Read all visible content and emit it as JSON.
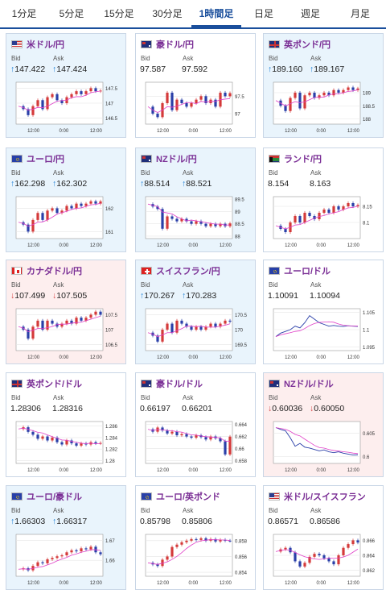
{
  "tabs": [
    {
      "label": "1分足",
      "active": false
    },
    {
      "label": "5分足",
      "active": false
    },
    {
      "label": "15分足",
      "active": false
    },
    {
      "label": "30分足",
      "active": false
    },
    {
      "label": "1時間足",
      "active": true
    },
    {
      "label": "日足",
      "active": false
    },
    {
      "label": "週足",
      "active": false
    },
    {
      "label": "月足",
      "active": false
    }
  ],
  "labels": {
    "bid": "Bid",
    "ask": "Ask"
  },
  "colors": {
    "up_bg": "#e9f4fc",
    "down_bg": "#fdeeee",
    "pair_text": "#7a2e95",
    "tab_active": "#1a4f9c",
    "candle_up": "#d43a3a",
    "candle_down": "#2a3fa8",
    "ma_line": "#e040c8"
  },
  "cards": [
    {
      "pair": "米ドル/円",
      "flag": "flag-us",
      "state": "up",
      "bid_dir": "up",
      "ask_dir": "up",
      "bid": "147.422",
      "ask": "147.424",
      "chart_data": {
        "type": "candlestick",
        "x_ticks": [
          "12:00",
          "0:00",
          "12:00"
        ],
        "y_ticks": [
          "147.5",
          "147",
          "146.5"
        ],
        "ylim": [
          146.3,
          147.7
        ],
        "trend": [
          146.9,
          146.8,
          146.6,
          146.9,
          147.1,
          146.8,
          147.2,
          147.3,
          147.1,
          147.0,
          147.2,
          147.3,
          147.4,
          147.3,
          147.4,
          147.5,
          147.4,
          147.42
        ]
      }
    },
    {
      "pair": "豪ドル/円",
      "flag": "flag-au",
      "state": "neutral",
      "bid_dir": "",
      "ask_dir": "",
      "bid": "97.587",
      "ask": "97.592",
      "chart_data": {
        "type": "candlestick",
        "x_ticks": [
          "12:00",
          "0:00",
          "12:00"
        ],
        "y_ticks": [
          "97.5",
          "97"
        ],
        "ylim": [
          96.7,
          97.9
        ],
        "trend": [
          97.2,
          97.0,
          96.9,
          97.3,
          97.6,
          97.1,
          97.4,
          97.3,
          97.2,
          97.3,
          97.4,
          97.5,
          97.3,
          97.4,
          97.2,
          97.6,
          97.5,
          97.587
        ]
      }
    },
    {
      "pair": "英ポンド/円",
      "flag": "flag-gb",
      "state": "up",
      "bid_dir": "up",
      "ask_dir": "up",
      "bid": "189.160",
      "ask": "189.167",
      "chart_data": {
        "type": "candlestick",
        "x_ticks": [
          "12:00",
          "0:00",
          "12:00"
        ],
        "y_ticks": [
          "189",
          "188.5",
          "188"
        ],
        "ylim": [
          187.8,
          189.4
        ],
        "trend": [
          188.7,
          188.5,
          188.3,
          188.8,
          189.0,
          188.4,
          188.9,
          189.0,
          188.8,
          188.9,
          189.0,
          188.9,
          189.1,
          189.0,
          189.1,
          189.2,
          189.1,
          189.16
        ]
      }
    },
    {
      "pair": "ユーロ/円",
      "flag": "flag-eu",
      "state": "up",
      "bid_dir": "up",
      "ask_dir": "up",
      "bid": "162.298",
      "ask": "162.302",
      "chart_data": {
        "type": "candlestick",
        "x_ticks": [
          "12:00",
          "0:00",
          "12:00"
        ],
        "y_ticks": [
          "162",
          "161"
        ],
        "ylim": [
          160.7,
          162.5
        ],
        "trend": [
          161.4,
          161.3,
          161.0,
          161.5,
          161.8,
          161.5,
          161.9,
          162.0,
          161.8,
          161.9,
          162.1,
          162.0,
          162.2,
          162.1,
          162.2,
          162.3,
          162.2,
          162.298
        ]
      }
    },
    {
      "pair": "NZドル/円",
      "flag": "flag-nz",
      "state": "up",
      "bid_dir": "up",
      "ask_dir": "up",
      "bid": "88.514",
      "ask": "88.521",
      "chart_data": {
        "type": "candlestick",
        "x_ticks": [
          "12:00",
          "0:00",
          "12:00"
        ],
        "y_ticks": [
          "89.5",
          "89",
          "88.5",
          "88"
        ],
        "ylim": [
          87.9,
          89.6
        ],
        "trend": [
          89.3,
          89.2,
          89.1,
          88.3,
          88.8,
          88.7,
          88.6,
          88.7,
          88.6,
          88.5,
          88.6,
          88.5,
          88.4,
          88.5,
          88.4,
          88.5,
          88.4,
          88.514
        ]
      }
    },
    {
      "pair": "ランド/円",
      "flag": "flag-za",
      "state": "neutral",
      "bid_dir": "",
      "ask_dir": "",
      "bid": "8.154",
      "ask": "8.163",
      "chart_data": {
        "type": "candlestick",
        "x_ticks": [
          "12:00",
          "0:00",
          "12:00"
        ],
        "y_ticks": [
          "8.15",
          "8.1"
        ],
        "ylim": [
          8.05,
          8.18
        ],
        "trend": [
          8.09,
          8.08,
          8.07,
          8.1,
          8.12,
          8.1,
          8.13,
          8.12,
          8.11,
          8.13,
          8.14,
          8.13,
          8.15,
          8.14,
          8.15,
          8.16,
          8.15,
          8.154
        ]
      }
    },
    {
      "pair": "カナダドル/円",
      "flag": "flag-ca",
      "state": "down",
      "bid_dir": "down",
      "ask_dir": "down",
      "bid": "107.499",
      "ask": "107.505",
      "chart_data": {
        "type": "candlestick",
        "x_ticks": [
          "12:00",
          "0:00",
          "12:00"
        ],
        "y_ticks": [
          "107.5",
          "107",
          "106.5"
        ],
        "ylim": [
          106.3,
          107.7
        ],
        "trend": [
          107.1,
          107.0,
          106.7,
          107.1,
          107.3,
          107.0,
          107.3,
          107.2,
          107.1,
          107.2,
          107.3,
          107.2,
          107.4,
          107.3,
          107.4,
          107.5,
          107.6,
          107.499
        ]
      }
    },
    {
      "pair": "スイスフラン/円",
      "flag": "flag-ch",
      "state": "up",
      "bid_dir": "up",
      "ask_dir": "up",
      "bid": "170.267",
      "ask": "170.283",
      "chart_data": {
        "type": "candlestick",
        "x_ticks": [
          "12:00",
          "0:00",
          "12:00"
        ],
        "y_ticks": [
          "170.5",
          "170",
          "169.5"
        ],
        "ylim": [
          169.3,
          170.7
        ],
        "trend": [
          169.9,
          169.8,
          169.6,
          170.0,
          170.2,
          169.9,
          170.3,
          170.2,
          170.1,
          170.0,
          170.1,
          170.0,
          170.1,
          170.2,
          170.1,
          170.2,
          170.3,
          170.267
        ]
      }
    },
    {
      "pair": "ユーロ/ドル",
      "flag": "flag-eu",
      "state": "neutral",
      "bid_dir": "",
      "ask_dir": "",
      "bid": "1.10091",
      "ask": "1.10094",
      "chart_data": {
        "type": "line",
        "x_ticks": [
          "12:00",
          "0:00",
          "12:00"
        ],
        "y_ticks": [
          "1.105",
          "1.1",
          "1.095"
        ],
        "ylim": [
          1.094,
          1.106
        ],
        "trend": [
          1.098,
          1.099,
          1.0995,
          1.1,
          1.101,
          1.1005,
          1.102,
          1.104,
          1.103,
          1.102,
          1.1015,
          1.101,
          1.1012,
          1.101,
          1.1009,
          1.1011,
          1.101,
          1.10091
        ]
      }
    },
    {
      "pair": "英ポンド/ドル",
      "flag": "flag-gb",
      "state": "neutral",
      "bid_dir": "",
      "ask_dir": "",
      "bid": "1.28306",
      "ask": "1.28316",
      "chart_data": {
        "type": "candlestick",
        "x_ticks": [
          "12:00",
          "0:00",
          "12:00"
        ],
        "y_ticks": [
          "1.286",
          "1.284",
          "1.282",
          "1.28"
        ],
        "ylim": [
          1.2795,
          1.2868
        ],
        "trend": [
          1.2855,
          1.2858,
          1.285,
          1.2845,
          1.2838,
          1.2842,
          1.2835,
          1.284,
          1.2832,
          1.2828,
          1.2835,
          1.283,
          1.2826,
          1.283,
          1.2828,
          1.2832,
          1.283,
          1.28306
        ]
      }
    },
    {
      "pair": "豪ドル/ドル",
      "flag": "flag-au",
      "state": "neutral",
      "bid_dir": "",
      "ask_dir": "",
      "bid": "0.66197",
      "ask": "0.66201",
      "chart_data": {
        "type": "candlestick",
        "x_ticks": [
          "12:00",
          "0:00",
          "12:00"
        ],
        "y_ticks": [
          "0.664",
          "0.662",
          "0.66",
          "0.658"
        ],
        "ylim": [
          0.6575,
          0.6645
        ],
        "trend": [
          0.6632,
          0.6628,
          0.6635,
          0.663,
          0.6625,
          0.6628,
          0.6622,
          0.6624,
          0.662,
          0.6618,
          0.6622,
          0.6619,
          0.6615,
          0.662,
          0.6617,
          0.6612,
          0.659,
          0.66197
        ]
      }
    },
    {
      "pair": "NZドル/ドル",
      "flag": "flag-nz",
      "state": "down",
      "bid_dir": "down",
      "ask_dir": "down",
      "bid": "0.60036",
      "ask": "0.60050",
      "chart_data": {
        "type": "line",
        "x_ticks": [
          "12:00",
          "0:00",
          "12:00"
        ],
        "y_ticks": [
          "0.605",
          "0.6"
        ],
        "ylim": [
          0.5985,
          0.6075
        ],
        "trend": [
          0.6062,
          0.6058,
          0.6055,
          0.604,
          0.6022,
          0.6028,
          0.602,
          0.6018,
          0.6015,
          0.6012,
          0.6014,
          0.601,
          0.6008,
          0.601,
          0.6007,
          0.6005,
          0.6003,
          0.60036
        ]
      }
    },
    {
      "pair": "ユーロ/豪ドル",
      "flag": "flag-eu",
      "state": "up",
      "bid_dir": "up",
      "ask_dir": "up",
      "bid": "1.66303",
      "ask": "1.66317",
      "chart_data": {
        "type": "candlestick",
        "x_ticks": [
          "12:00",
          "0:00",
          "12:00"
        ],
        "y_ticks": [
          "1.67",
          "1.66"
        ],
        "ylim": [
          1.652,
          1.673
        ],
        "trend": [
          1.6555,
          1.656,
          1.655,
          1.6572,
          1.659,
          1.6585,
          1.6605,
          1.6612,
          1.662,
          1.6625,
          1.664,
          1.665,
          1.6645,
          1.666,
          1.6655,
          1.6668,
          1.664,
          1.66303
        ]
      }
    },
    {
      "pair": "ユーロ/英ポンド",
      "flag": "flag-eu",
      "state": "neutral",
      "bid_dir": "",
      "ask_dir": "",
      "bid": "0.85798",
      "ask": "0.85806",
      "chart_data": {
        "type": "candlestick",
        "x_ticks": [
          "12:00",
          "0:00",
          "12:00"
        ],
        "y_ticks": [
          "0.858",
          "0.856",
          "0.854"
        ],
        "ylim": [
          0.8535,
          0.8588
        ],
        "trend": [
          0.8552,
          0.855,
          0.8548,
          0.8556,
          0.856,
          0.8572,
          0.8575,
          0.8578,
          0.858,
          0.8582,
          0.8581,
          0.8583,
          0.858,
          0.8582,
          0.8579,
          0.8581,
          0.858,
          0.85798
        ]
      }
    },
    {
      "pair": "米ドル/スイスフラン",
      "flag": "flag-us",
      "state": "neutral",
      "bid_dir": "",
      "ask_dir": "",
      "bid": "0.86571",
      "ask": "0.86586",
      "chart_data": {
        "type": "candlestick",
        "x_ticks": [
          "12:00",
          "0:00",
          "12:00"
        ],
        "y_ticks": [
          "0.866",
          "0.864",
          "0.862"
        ],
        "ylim": [
          0.8612,
          0.8668
        ],
        "trend": [
          0.8645,
          0.8648,
          0.865,
          0.8644,
          0.8632,
          0.8625,
          0.863,
          0.8638,
          0.8642,
          0.864,
          0.8636,
          0.8632,
          0.8628,
          0.864,
          0.865,
          0.8655,
          0.866,
          0.86571
        ]
      }
    }
  ]
}
